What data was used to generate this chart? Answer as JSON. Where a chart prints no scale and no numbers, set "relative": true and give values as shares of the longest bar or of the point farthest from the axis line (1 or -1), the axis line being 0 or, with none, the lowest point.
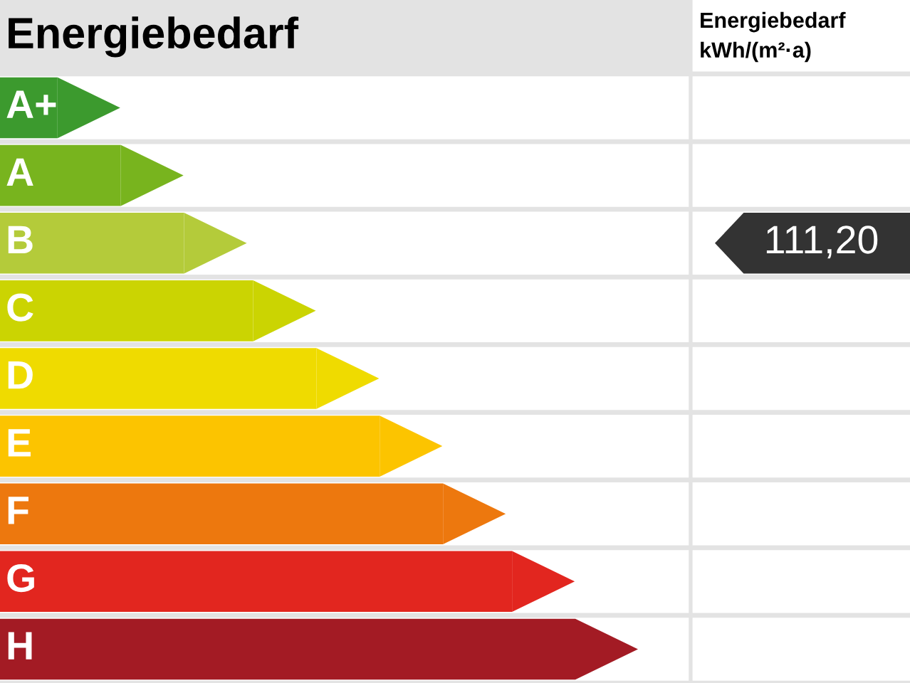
{
  "chart_data": {
    "type": "bar",
    "orientation": "horizontal",
    "relative": true,
    "title": "Energiebedarf",
    "categories": [
      "A+",
      "A",
      "B",
      "C",
      "D",
      "E",
      "F",
      "G",
      "H"
    ],
    "values": [
      0.1,
      0.21,
      0.32,
      0.44,
      0.55,
      0.66,
      0.77,
      0.89,
      1.0
    ],
    "colors": [
      "#3c9a2e",
      "#78b41e",
      "#b4cb3a",
      "#cbd402",
      "#efdb00",
      "#fcc400",
      "#ed780e",
      "#e2261f",
      "#a31b24"
    ],
    "annotations": [
      "Energiebedarf kWh/(m²·a)",
      "111,20"
    ]
  }
}
